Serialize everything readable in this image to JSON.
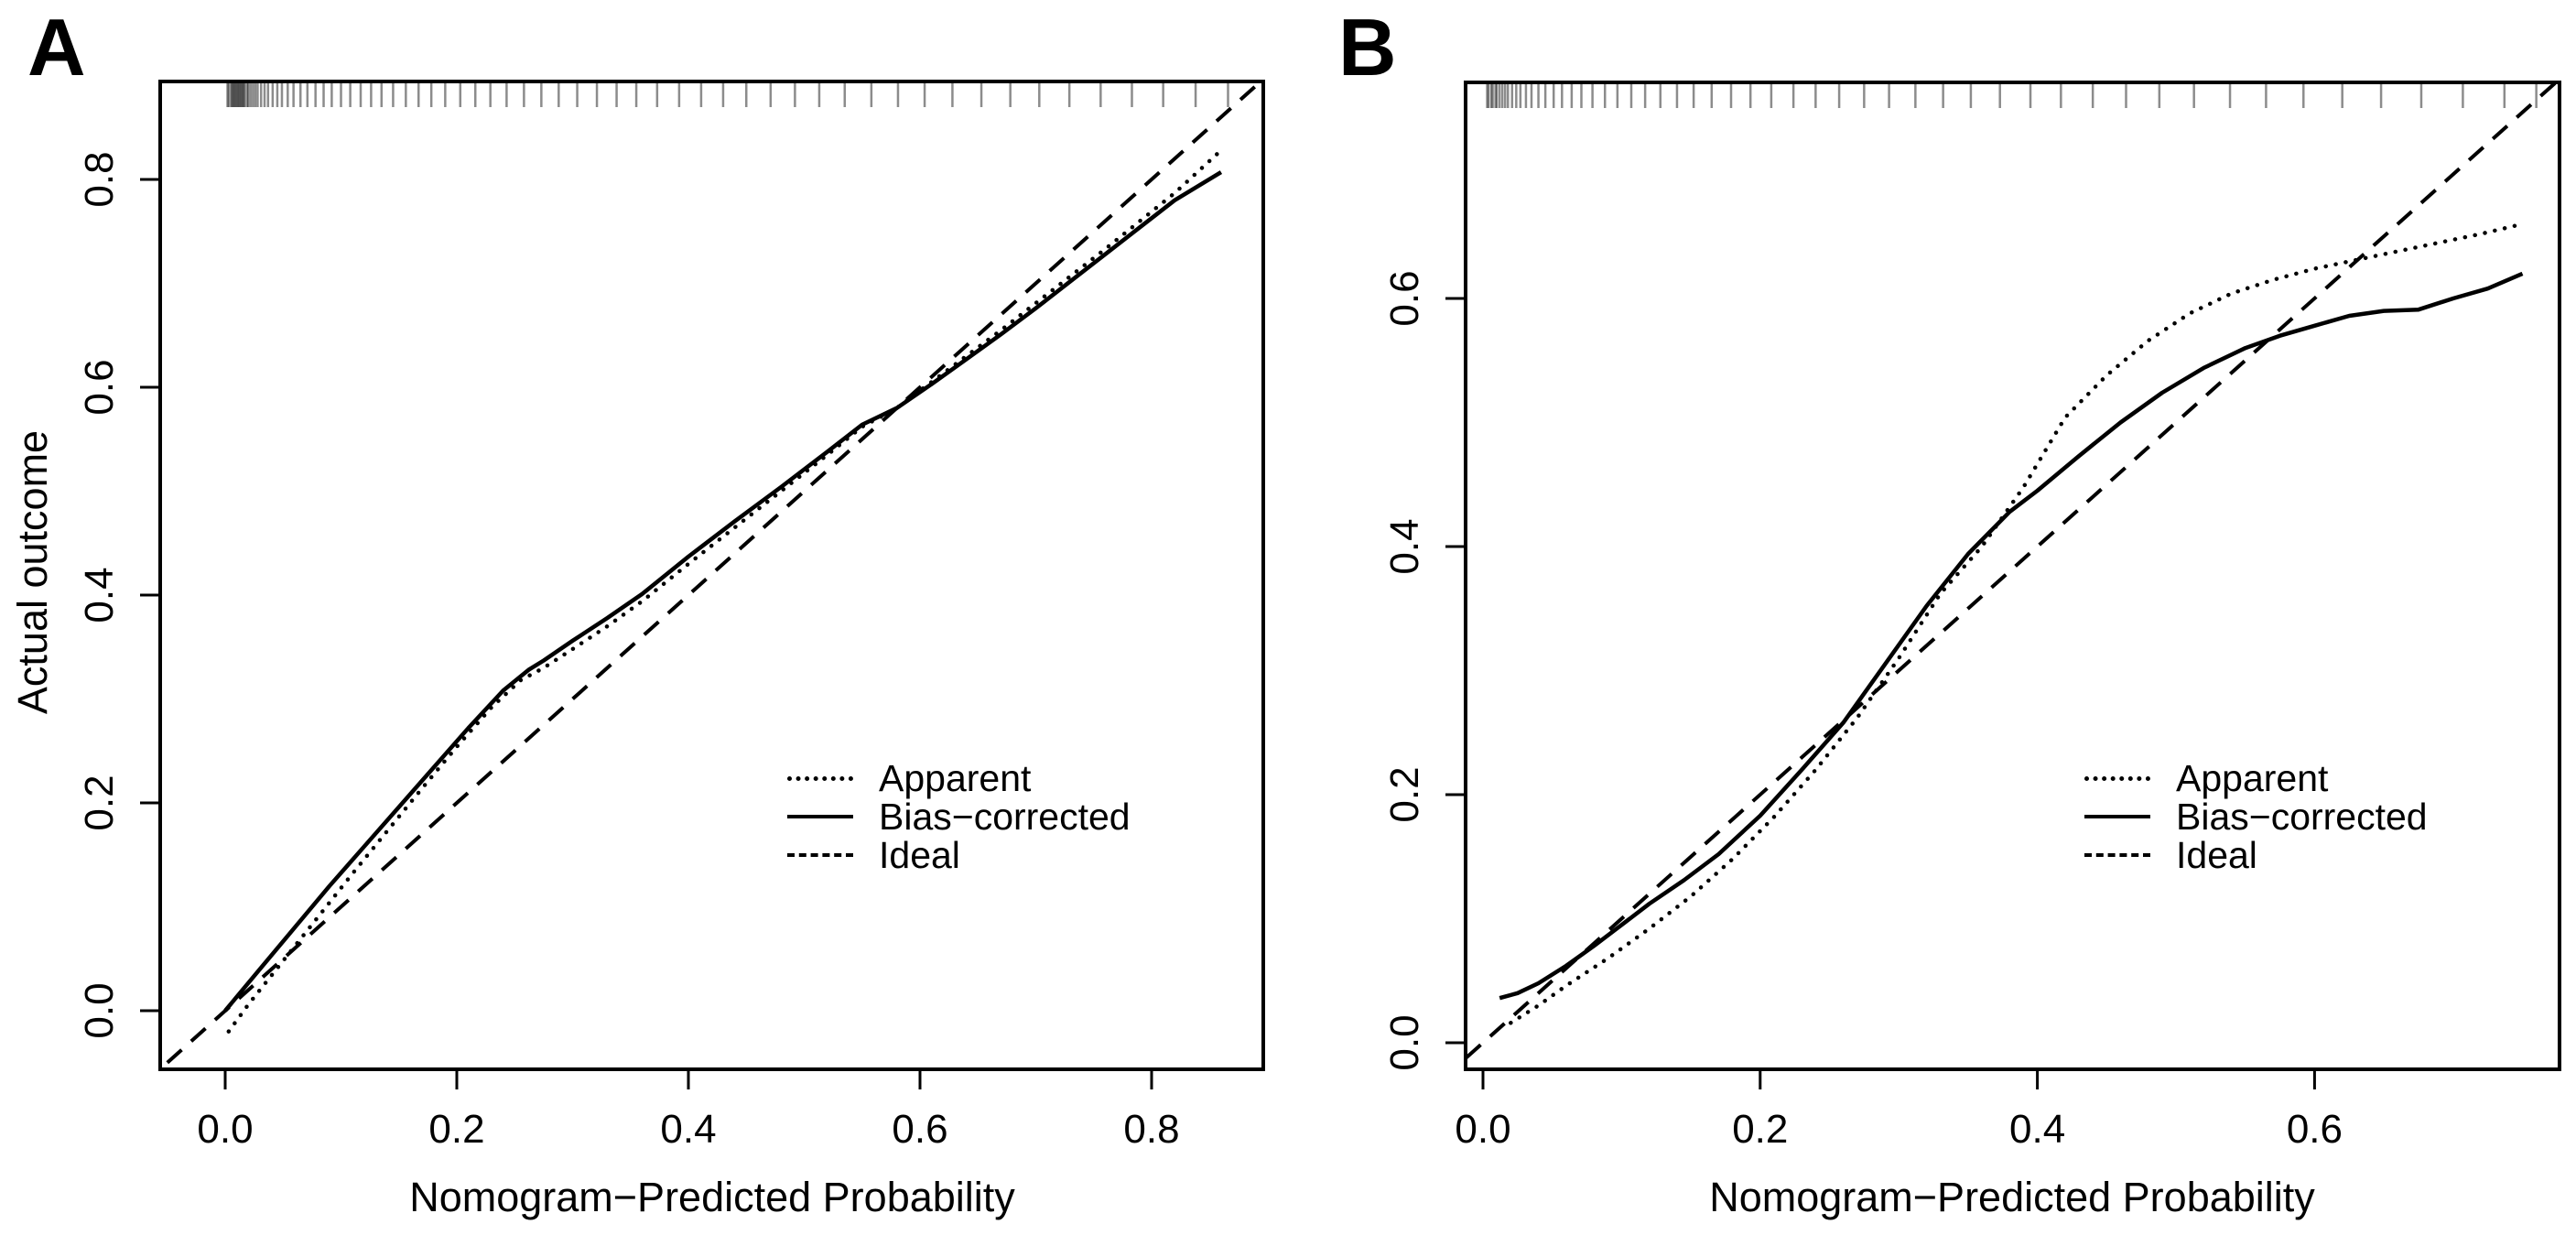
{
  "figure": {
    "background_color": "#ffffff",
    "line_color": "#000000",
    "rug_color": "rgba(0,0,0,0.45)"
  },
  "chart_data": [
    {
      "type": "line",
      "panel_label": "A",
      "xlabel": "Nomogram−Predicted Probability",
      "ylabel": "Actual outcome",
      "x_ticks": [
        0.0,
        0.2,
        0.4,
        0.6,
        0.8
      ],
      "y_ticks": [
        0.0,
        0.2,
        0.4,
        0.6,
        0.8
      ],
      "xlim": [
        -0.056,
        0.897
      ],
      "ylim": [
        -0.056,
        0.894
      ],
      "grid": false,
      "legend": {
        "position": "right-center",
        "entries": [
          {
            "label": "Apparent",
            "style": "dotted"
          },
          {
            "label": "Bias−corrected",
            "style": "solid"
          },
          {
            "label": "Ideal",
            "style": "dashed"
          }
        ]
      },
      "series": [
        {
          "name": "Apparent",
          "style": "dotted",
          "points": [
            [
              0.003,
              -0.02
            ],
            [
              0.02,
              0.006
            ],
            [
              0.05,
              0.048
            ],
            [
              0.08,
              0.09
            ],
            [
              0.11,
              0.132
            ],
            [
              0.14,
              0.173
            ],
            [
              0.17,
              0.214
            ],
            [
              0.2,
              0.254
            ],
            [
              0.23,
              0.292
            ],
            [
              0.255,
              0.318
            ],
            [
              0.275,
              0.33
            ],
            [
              0.3,
              0.348
            ],
            [
              0.33,
              0.37
            ],
            [
              0.36,
              0.394
            ],
            [
              0.4,
              0.43
            ],
            [
              0.44,
              0.465
            ],
            [
              0.48,
              0.5
            ],
            [
              0.52,
              0.535
            ],
            [
              0.55,
              0.562
            ],
            [
              0.58,
              0.58
            ],
            [
              0.61,
              0.605
            ],
            [
              0.64,
              0.63
            ],
            [
              0.67,
              0.655
            ],
            [
              0.7,
              0.681
            ],
            [
              0.73,
              0.707
            ],
            [
              0.76,
              0.733
            ],
            [
              0.79,
              0.76
            ],
            [
              0.82,
              0.787
            ],
            [
              0.86,
              0.828
            ]
          ]
        },
        {
          "name": "Bias−corrected",
          "style": "solid",
          "points": [
            [
              0.0,
              0.0
            ],
            [
              0.03,
              0.04
            ],
            [
              0.06,
              0.08
            ],
            [
              0.09,
              0.12
            ],
            [
              0.12,
              0.158
            ],
            [
              0.15,
              0.196
            ],
            [
              0.18,
              0.234
            ],
            [
              0.21,
              0.272
            ],
            [
              0.24,
              0.308
            ],
            [
              0.262,
              0.328
            ],
            [
              0.275,
              0.337
            ],
            [
              0.3,
              0.356
            ],
            [
              0.33,
              0.378
            ],
            [
              0.36,
              0.401
            ],
            [
              0.4,
              0.437
            ],
            [
              0.44,
              0.471
            ],
            [
              0.48,
              0.504
            ],
            [
              0.52,
              0.538
            ],
            [
              0.55,
              0.564
            ],
            [
              0.58,
              0.58
            ],
            [
              0.61,
              0.603
            ],
            [
              0.64,
              0.627
            ],
            [
              0.67,
              0.651
            ],
            [
              0.7,
              0.676
            ],
            [
              0.73,
              0.702
            ],
            [
              0.76,
              0.728
            ],
            [
              0.79,
              0.754
            ],
            [
              0.82,
              0.78
            ],
            [
              0.86,
              0.807
            ]
          ]
        },
        {
          "name": "Ideal",
          "style": "dashed",
          "points": [
            [
              -0.05,
              -0.05
            ],
            [
              0.89,
              0.89
            ]
          ]
        }
      ],
      "rug_x": [
        0.002,
        0.003,
        0.005,
        0.006,
        0.007,
        0.008,
        0.009,
        0.01,
        0.011,
        0.012,
        0.013,
        0.014,
        0.015,
        0.016,
        0.017,
        0.019,
        0.02,
        0.022,
        0.024,
        0.026,
        0.028,
        0.031,
        0.034,
        0.037,
        0.041,
        0.045,
        0.049,
        0.054,
        0.059,
        0.065,
        0.071,
        0.078,
        0.085,
        0.092,
        0.1,
        0.108,
        0.117,
        0.126,
        0.135,
        0.145,
        0.156,
        0.167,
        0.178,
        0.19,
        0.203,
        0.216,
        0.229,
        0.243,
        0.258,
        0.273,
        0.288,
        0.304,
        0.321,
        0.338,
        0.355,
        0.373,
        0.392,
        0.411,
        0.43,
        0.45,
        0.471,
        0.492,
        0.513,
        0.535,
        0.558,
        0.581,
        0.604,
        0.628,
        0.653,
        0.678,
        0.703,
        0.729,
        0.756,
        0.783,
        0.81,
        0.838,
        0.866
      ]
    },
    {
      "type": "line",
      "panel_label": "B",
      "xlabel": "Nomogram−Predicted Probability",
      "ylabel": "",
      "x_ticks": [
        0.0,
        0.2,
        0.4,
        0.6
      ],
      "y_ticks": [
        0.0,
        0.2,
        0.4,
        0.6
      ],
      "xlim": [
        -0.0125,
        0.777
      ],
      "ylim": [
        -0.021,
        0.774
      ],
      "grid": false,
      "legend": {
        "position": "right-center",
        "entries": [
          {
            "label": "Apparent",
            "style": "dotted"
          },
          {
            "label": "Bias−corrected",
            "style": "solid"
          },
          {
            "label": "Ideal",
            "style": "dashed"
          }
        ]
      },
      "series": [
        {
          "name": "Apparent",
          "style": "dotted",
          "points": [
            [
              0.02,
              0.016
            ],
            [
              0.04,
              0.03
            ],
            [
              0.06,
              0.046
            ],
            [
              0.09,
              0.068
            ],
            [
              0.12,
              0.092
            ],
            [
              0.15,
              0.118
            ],
            [
              0.18,
              0.148
            ],
            [
              0.21,
              0.182
            ],
            [
              0.24,
              0.22
            ],
            [
              0.27,
              0.262
            ],
            [
              0.3,
              0.31
            ],
            [
              0.33,
              0.362
            ],
            [
              0.36,
              0.4
            ],
            [
              0.39,
              0.448
            ],
            [
              0.42,
              0.504
            ],
            [
              0.45,
              0.538
            ],
            [
              0.48,
              0.566
            ],
            [
              0.51,
              0.588
            ],
            [
              0.54,
              0.604
            ],
            [
              0.57,
              0.615
            ],
            [
              0.6,
              0.624
            ],
            [
              0.63,
              0.631
            ],
            [
              0.66,
              0.638
            ],
            [
              0.69,
              0.645
            ],
            [
              0.72,
              0.652
            ],
            [
              0.75,
              0.66
            ]
          ]
        },
        {
          "name": "Bias−corrected",
          "style": "solid",
          "points": [
            [
              0.012,
              0.036
            ],
            [
              0.025,
              0.04
            ],
            [
              0.04,
              0.048
            ],
            [
              0.06,
              0.062
            ],
            [
              0.08,
              0.078
            ],
            [
              0.1,
              0.095
            ],
            [
              0.12,
              0.112
            ],
            [
              0.145,
              0.131
            ],
            [
              0.17,
              0.152
            ],
            [
              0.2,
              0.183
            ],
            [
              0.23,
              0.22
            ],
            [
              0.26,
              0.258
            ],
            [
              0.29,
              0.305
            ],
            [
              0.32,
              0.352
            ],
            [
              0.35,
              0.394
            ],
            [
              0.38,
              0.428
            ],
            [
              0.4,
              0.445
            ],
            [
              0.43,
              0.473
            ],
            [
              0.46,
              0.5
            ],
            [
              0.49,
              0.524
            ],
            [
              0.52,
              0.544
            ],
            [
              0.55,
              0.56
            ],
            [
              0.575,
              0.57
            ],
            [
              0.6,
              0.578
            ],
            [
              0.625,
              0.586
            ],
            [
              0.65,
              0.59
            ],
            [
              0.675,
              0.591
            ],
            [
              0.7,
              0.6
            ],
            [
              0.725,
              0.608
            ],
            [
              0.75,
              0.62
            ]
          ]
        },
        {
          "name": "Ideal",
          "style": "dashed",
          "points": [
            [
              -0.012,
              -0.012
            ],
            [
              0.774,
              0.774
            ]
          ]
        }
      ],
      "rug_x": [
        0.003,
        0.004,
        0.006,
        0.007,
        0.009,
        0.01,
        0.012,
        0.014,
        0.016,
        0.018,
        0.021,
        0.024,
        0.027,
        0.031,
        0.035,
        0.04,
        0.045,
        0.051,
        0.057,
        0.064,
        0.071,
        0.079,
        0.088,
        0.097,
        0.107,
        0.117,
        0.128,
        0.14,
        0.152,
        0.165,
        0.179,
        0.193,
        0.208,
        0.224,
        0.24,
        0.257,
        0.275,
        0.293,
        0.312,
        0.332,
        0.352,
        0.373,
        0.395,
        0.417,
        0.44,
        0.464,
        0.488,
        0.513,
        0.539,
        0.565,
        0.592,
        0.62,
        0.648,
        0.677,
        0.707,
        0.737,
        0.76
      ]
    }
  ]
}
